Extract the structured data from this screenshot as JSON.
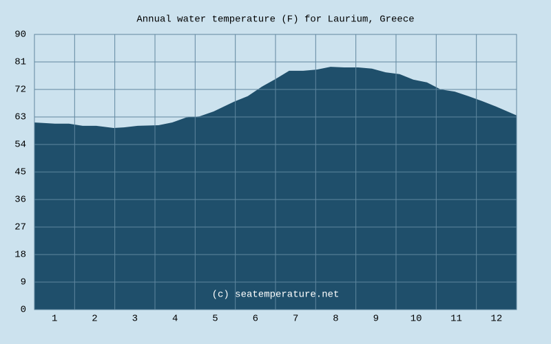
{
  "chart_data": {
    "type": "area",
    "title": "Annual water temperature (F) for Laurium, Greece",
    "annotation": "(c) seatemperature.net",
    "x": [
      0.5,
      1.01,
      1.36,
      1.7,
      2.04,
      2.47,
      2.73,
      3.07,
      3.59,
      3.93,
      4.27,
      4.61,
      4.96,
      5.47,
      5.81,
      6.16,
      6.5,
      6.84,
      7.19,
      7.53,
      7.87,
      8.21,
      8.56,
      8.9,
      9.24,
      9.59,
      9.93,
      10.27,
      10.61,
      10.96,
      11.3,
      11.64,
      11.99,
      12.5
    ],
    "values": [
      61.2,
      60.8,
      60.8,
      60.1,
      60.1,
      59.4,
      59.6,
      60.1,
      60.3,
      61.2,
      62.8,
      63.2,
      64.8,
      68.0,
      69.8,
      72.9,
      75.4,
      78.1,
      78.1,
      78.5,
      79.4,
      79.2,
      79.2,
      78.8,
      77.6,
      77.0,
      75.2,
      74.3,
      72.0,
      71.3,
      69.8,
      68.2,
      66.4,
      63.5
    ],
    "color": "#1f4f6b",
    "xlim": [
      0.5,
      12.5
    ],
    "xticks": [
      1,
      2,
      3,
      4,
      5,
      6,
      7,
      8,
      9,
      10,
      11,
      12
    ],
    "ylim": [
      0,
      90
    ],
    "yticks": [
      0,
      9,
      18,
      27,
      36,
      45,
      54,
      63,
      72,
      81,
      90
    ],
    "grid": true
  }
}
